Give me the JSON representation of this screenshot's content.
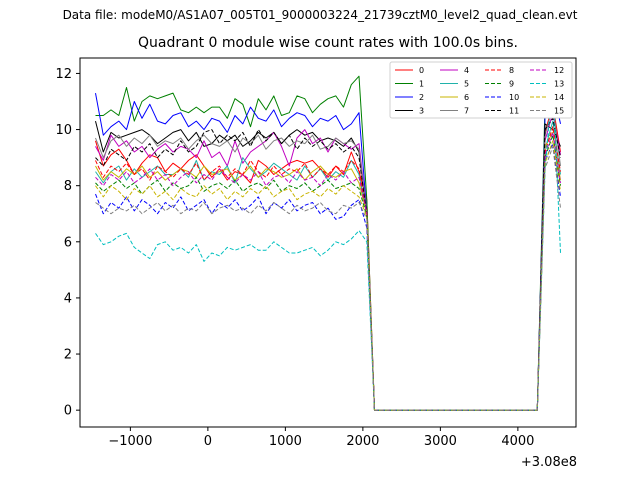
{
  "suptitle": "Data file: modeM0/AS1A07_005T01_9000003224_21739cztM0_level2_quad_clean.evt",
  "chart_data": {
    "type": "line",
    "title": "Quadrant 0 module wise count rates with 100.0s bins.",
    "xlabel": "",
    "ylabel": "",
    "x_offset_label": "+3.08e8",
    "xlim": [
      -1650,
      4750
    ],
    "ylim": [
      -0.6,
      12.55
    ],
    "x_ticks": [
      -1000,
      0,
      1000,
      2000,
      3000,
      4000
    ],
    "x_tick_labels": [
      "−1000",
      "0",
      "1000",
      "2000",
      "3000",
      "4000"
    ],
    "y_ticks": [
      0,
      2,
      4,
      6,
      8,
      10,
      12
    ],
    "y_tick_labels": [
      "0",
      "2",
      "4",
      "6",
      "8",
      "10",
      "12"
    ],
    "grid": false,
    "legend_position": "upper-right",
    "legend_columns": 4,
    "x": [
      -1450,
      -1350,
      -1250,
      -1150,
      -1050,
      -950,
      -850,
      -750,
      -650,
      -550,
      -450,
      -350,
      -250,
      -150,
      -50,
      50,
      150,
      250,
      350,
      450,
      550,
      650,
      750,
      850,
      950,
      1050,
      1150,
      1250,
      1350,
      1450,
      1550,
      1650,
      1750,
      1850,
      1950,
      2050,
      2150,
      2250,
      2350,
      2450,
      2550,
      2650,
      2750,
      2850,
      2950,
      3050,
      3150,
      3250,
      3350,
      3450,
      3550,
      3650,
      3750,
      3850,
      3950,
      4050,
      4150,
      4250,
      4350,
      4450,
      4550
    ],
    "series": [
      {
        "name": "0",
        "color": "#ff0000",
        "dash": "solid",
        "values": [
          9.6,
          8.7,
          9.1,
          9.3,
          8.9,
          8.4,
          8.8,
          9.1,
          9.0,
          8.5,
          8.8,
          8.6,
          8.9,
          9.1,
          8.7,
          8.3,
          8.6,
          8.2,
          8.5,
          8.4,
          8.1,
          8.9,
          8.7,
          8.4,
          8.6,
          8.8,
          8.9,
          8.8,
          8.9,
          8.6,
          8.3,
          8.7,
          8.4,
          9.2,
          8.5,
          7.5,
          0,
          0,
          0,
          0,
          0,
          0,
          0,
          0,
          0,
          0,
          0,
          0,
          0,
          0,
          0,
          0,
          0,
          0,
          0,
          0,
          0,
          0,
          9.9,
          10.9,
          9.2
        ]
      },
      {
        "name": "1",
        "color": "#008000",
        "dash": "solid",
        "values": [
          10.5,
          10.5,
          10.7,
          10.5,
          11.5,
          10.3,
          11.0,
          11.2,
          11.1,
          11.2,
          11.3,
          10.7,
          10.6,
          10.8,
          10.6,
          10.8,
          10.8,
          10.4,
          11.1,
          10.9,
          10.1,
          11.1,
          10.7,
          11.2,
          10.5,
          10.6,
          11.2,
          11.1,
          10.6,
          10.9,
          11.1,
          11.2,
          10.8,
          11.6,
          11.9,
          7.5,
          0,
          0,
          0,
          0,
          0,
          0,
          0,
          0,
          0,
          0,
          0,
          0,
          0,
          0,
          0,
          0,
          0,
          0,
          0,
          0,
          0,
          0,
          10.9,
          11.8,
          10.9
        ]
      },
      {
        "name": "2",
        "color": "#0000ff",
        "dash": "solid",
        "values": [
          11.3,
          9.8,
          10.1,
          10.3,
          10.0,
          11.0,
          10.4,
          10.9,
          10.3,
          10.2,
          10.5,
          10.6,
          10.1,
          10.3,
          10.0,
          10.4,
          10.3,
          9.9,
          10.5,
          10.2,
          10.8,
          10.4,
          10.3,
          10.7,
          10.1,
          10.4,
          10.6,
          10.5,
          10.1,
          10.4,
          10.3,
          10.5,
          10.0,
          10.2,
          10.6,
          7.0,
          0,
          0,
          0,
          0,
          0,
          0,
          0,
          0,
          0,
          0,
          0,
          0,
          0,
          0,
          0,
          0,
          0,
          0,
          0,
          0,
          0,
          0,
          10.4,
          11.5,
          10.2
        ]
      },
      {
        "name": "3",
        "color": "#000000",
        "dash": "solid",
        "values": [
          10.3,
          9.2,
          9.9,
          9.7,
          9.8,
          9.9,
          10.0,
          9.8,
          9.5,
          9.7,
          9.9,
          10.0,
          9.6,
          9.9,
          9.4,
          9.5,
          9.8,
          9.6,
          9.8,
          9.4,
          9.6,
          9.9,
          9.7,
          9.9,
          9.5,
          9.8,
          10.0,
          9.8,
          9.9,
          9.6,
          9.7,
          9.6,
          9.4,
          9.7,
          9.2,
          7.0,
          0,
          0,
          0,
          0,
          0,
          0,
          0,
          0,
          0,
          0,
          0,
          0,
          0,
          0,
          0,
          0,
          0,
          0,
          0,
          0,
          0,
          0,
          10.2,
          10.0,
          9.4
        ]
      },
      {
        "name": "4",
        "color": "#c000c0",
        "dash": "solid",
        "values": [
          9.4,
          8.9,
          9.8,
          9.4,
          9.6,
          9.2,
          9.4,
          9.0,
          9.3,
          9.5,
          9.2,
          9.4,
          9.3,
          9.0,
          9.6,
          9.0,
          9.2,
          8.7,
          9.6,
          8.8,
          9.2,
          9.4,
          9.6,
          9.9,
          9.4,
          8.7,
          9.7,
          10.0,
          9.5,
          9.7,
          9.2,
          9.7,
          9.5,
          9.3,
          9.5,
          7.0,
          0,
          0,
          0,
          0,
          0,
          0,
          0,
          0,
          0,
          0,
          0,
          0,
          0,
          0,
          0,
          0,
          0,
          0,
          0,
          0,
          0,
          0,
          9.6,
          10.6,
          9.1
        ]
      },
      {
        "name": "5",
        "color": "#20b2aa",
        "dash": "solid",
        "values": [
          8.5,
          8.1,
          8.5,
          8.7,
          8.2,
          8.6,
          8.3,
          8.5,
          8.7,
          8.4,
          8.4,
          8.6,
          8.3,
          8.9,
          8.2,
          8.5,
          8.4,
          8.7,
          8.1,
          9.0,
          8.6,
          8.3,
          8.5,
          8.8,
          8.6,
          8.4,
          8.2,
          8.7,
          8.3,
          8.6,
          8.2,
          8.5,
          8.3,
          8.9,
          8.4,
          7.0,
          0,
          0,
          0,
          0,
          0,
          0,
          0,
          0,
          0,
          0,
          0,
          0,
          0,
          0,
          0,
          0,
          0,
          0,
          0,
          0,
          0,
          0,
          9.3,
          10.3,
          8.4
        ]
      },
      {
        "name": "6",
        "color": "#c8b400",
        "dash": "solid",
        "values": [
          8.7,
          8.2,
          8.5,
          8.3,
          8.6,
          8.4,
          8.7,
          8.3,
          8.5,
          8.2,
          8.4,
          8.6,
          8.5,
          8.3,
          8.7,
          8.4,
          8.5,
          8.6,
          8.2,
          8.4,
          8.7,
          8.3,
          8.6,
          8.5,
          8.3,
          8.4,
          8.6,
          8.2,
          8.5,
          8.7,
          8.4,
          8.3,
          8.5,
          8.6,
          8.1,
          7.0,
          0,
          0,
          0,
          0,
          0,
          0,
          0,
          0,
          0,
          0,
          0,
          0,
          0,
          0,
          0,
          0,
          0,
          0,
          0,
          0,
          0,
          0,
          9.4,
          9.9,
          8.2
        ]
      },
      {
        "name": "7",
        "color": "#808080",
        "dash": "solid",
        "values": [
          9.7,
          9.0,
          9.6,
          9.8,
          9.4,
          9.7,
          9.5,
          9.8,
          9.4,
          9.6,
          9.5,
          9.7,
          9.3,
          9.6,
          9.8,
          9.5,
          9.4,
          9.6,
          9.2,
          9.7,
          9.5,
          9.8,
          9.3,
          9.6,
          9.7,
          9.4,
          9.6,
          9.5,
          9.8,
          9.3,
          9.4,
          9.7,
          9.5,
          9.6,
          9.3,
          7.0,
          0,
          0,
          0,
          0,
          0,
          0,
          0,
          0,
          0,
          0,
          0,
          0,
          0,
          0,
          0,
          0,
          0,
          0,
          0,
          0,
          0,
          0,
          9.8,
          10.8,
          8.7
        ]
      },
      {
        "name": "8",
        "color": "#ff0000",
        "dash": "dashed",
        "values": [
          8.9,
          8.3,
          8.7,
          8.5,
          8.8,
          8.4,
          8.6,
          8.2,
          8.7,
          8.5,
          8.3,
          8.6,
          8.4,
          8.8,
          8.2,
          8.5,
          8.7,
          8.3,
          8.6,
          8.4,
          8.9,
          8.5,
          8.3,
          8.7,
          8.4,
          8.6,
          8.5,
          8.8,
          8.3,
          8.6,
          8.4,
          8.7,
          8.5,
          8.9,
          8.6,
          7.0,
          0,
          0,
          0,
          0,
          0,
          0,
          0,
          0,
          0,
          0,
          0,
          0,
          0,
          0,
          0,
          0,
          0,
          0,
          0,
          0,
          0,
          0,
          9.2,
          10.1,
          8.5
        ]
      },
      {
        "name": "9",
        "color": "#008000",
        "dash": "dashed",
        "values": [
          8.1,
          7.8,
          8.0,
          8.2,
          7.9,
          8.1,
          7.7,
          8.0,
          8.2,
          7.8,
          8.1,
          7.9,
          8.0,
          8.3,
          7.8,
          8.0,
          8.1,
          7.9,
          8.2,
          7.8,
          8.0,
          8.1,
          7.9,
          8.2,
          7.8,
          8.0,
          7.9,
          8.1,
          7.8,
          8.0,
          8.2,
          7.9,
          8.0,
          8.1,
          7.9,
          6.9,
          0,
          0,
          0,
          0,
          0,
          0,
          0,
          0,
          0,
          0,
          0,
          0,
          0,
          0,
          0,
          0,
          0,
          0,
          0,
          0,
          0,
          0,
          9.0,
          9.8,
          8.0
        ]
      },
      {
        "name": "10",
        "color": "#0000ff",
        "dash": "dashed",
        "values": [
          7.7,
          7.0,
          7.4,
          7.2,
          7.6,
          7.1,
          7.5,
          7.3,
          7.0,
          7.4,
          7.2,
          7.6,
          7.1,
          7.3,
          7.5,
          7.0,
          7.4,
          7.2,
          7.5,
          7.1,
          7.3,
          7.6,
          7.0,
          7.4,
          7.2,
          7.5,
          7.1,
          7.3,
          7.4,
          7.0,
          7.2,
          6.8,
          6.9,
          7.3,
          7.5,
          6.5,
          0,
          0,
          0,
          0,
          0,
          0,
          0,
          0,
          0,
          0,
          0,
          0,
          0,
          0,
          0,
          0,
          0,
          0,
          0,
          0,
          0,
          0,
          8.9,
          9.5,
          7.6
        ]
      },
      {
        "name": "11",
        "color": "#000000",
        "dash": "dashed",
        "values": [
          9.0,
          8.7,
          9.3,
          9.1,
          8.9,
          9.4,
          9.2,
          9.5,
          9.0,
          9.3,
          9.1,
          9.6,
          9.2,
          9.4,
          9.9,
          10.0,
          9.5,
          9.8,
          9.6,
          9.9,
          9.4,
          10.0,
          9.6,
          9.9,
          9.5,
          9.8,
          9.3,
          9.7,
          9.4,
          9.6,
          9.3,
          9.5,
          9.2,
          9.4,
          9.0,
          7.0,
          0,
          0,
          0,
          0,
          0,
          0,
          0,
          0,
          0,
          0,
          0,
          0,
          0,
          0,
          0,
          0,
          0,
          0,
          0,
          0,
          0,
          0,
          10.0,
          10.4,
          9.0
        ]
      },
      {
        "name": "12",
        "color": "#c000c0",
        "dash": "dashed",
        "values": [
          8.3,
          8.0,
          8.4,
          8.2,
          8.5,
          8.1,
          8.3,
          8.6,
          8.2,
          8.4,
          8.0,
          8.3,
          8.5,
          8.1,
          8.4,
          8.2,
          8.6,
          8.3,
          8.1,
          8.4,
          8.2,
          8.5,
          8.0,
          8.3,
          8.4,
          8.1,
          8.5,
          8.2,
          8.3,
          8.0,
          8.4,
          8.2,
          8.5,
          8.1,
          8.3,
          7.0,
          0,
          0,
          0,
          0,
          0,
          0,
          0,
          0,
          0,
          0,
          0,
          0,
          0,
          0,
          0,
          0,
          0,
          0,
          0,
          0,
          0,
          0,
          9.1,
          9.9,
          8.1
        ]
      },
      {
        "name": "13",
        "color": "#00bfbf",
        "dash": "dashed",
        "values": [
          6.3,
          5.9,
          6.0,
          6.2,
          6.3,
          5.8,
          5.6,
          5.4,
          5.9,
          6.0,
          5.7,
          5.8,
          5.6,
          5.9,
          5.3,
          5.6,
          5.5,
          5.8,
          5.7,
          5.8,
          5.9,
          5.7,
          5.7,
          6.0,
          5.8,
          5.6,
          5.6,
          5.7,
          5.8,
          5.5,
          5.7,
          6.0,
          5.9,
          6.1,
          6.4,
          6.0,
          0,
          0,
          0,
          0,
          0,
          0,
          0,
          0,
          0,
          0,
          0,
          0,
          0,
          0,
          0,
          0,
          0,
          0,
          0,
          0,
          0,
          0,
          8.5,
          11.9,
          5.6
        ]
      },
      {
        "name": "14",
        "color": "#c8b400",
        "dash": "dashed",
        "values": [
          8.0,
          7.6,
          8.0,
          7.8,
          7.5,
          7.9,
          7.7,
          8.0,
          7.6,
          7.8,
          7.5,
          7.9,
          7.7,
          7.6,
          8.0,
          7.7,
          7.9,
          7.5,
          7.8,
          7.6,
          7.9,
          7.7,
          8.0,
          7.6,
          7.8,
          7.9,
          7.5,
          7.7,
          7.8,
          7.6,
          7.9,
          7.7,
          8.0,
          7.8,
          7.6,
          6.9,
          0,
          0,
          0,
          0,
          0,
          0,
          0,
          0,
          0,
          0,
          0,
          0,
          0,
          0,
          0,
          0,
          0,
          0,
          0,
          0,
          0,
          0,
          8.8,
          9.6,
          7.8
        ]
      },
      {
        "name": "15",
        "color": "#808080",
        "dash": "dashed",
        "values": [
          7.4,
          7.2,
          7.0,
          7.2,
          7.1,
          7.3,
          7.0,
          7.2,
          7.4,
          7.1,
          7.3,
          7.0,
          7.2,
          7.1,
          7.4,
          7.0,
          7.2,
          7.3,
          7.1,
          7.2,
          7.0,
          7.3,
          7.1,
          7.4,
          7.2,
          7.0,
          7.3,
          7.1,
          7.2,
          7.4,
          7.1,
          7.0,
          7.3,
          7.2,
          7.4,
          6.8,
          0,
          0,
          0,
          0,
          0,
          0,
          0,
          0,
          0,
          0,
          0,
          0,
          0,
          0,
          0,
          0,
          0,
          0,
          0,
          0,
          0,
          0,
          8.6,
          9.4,
          7.2
        ]
      }
    ]
  }
}
